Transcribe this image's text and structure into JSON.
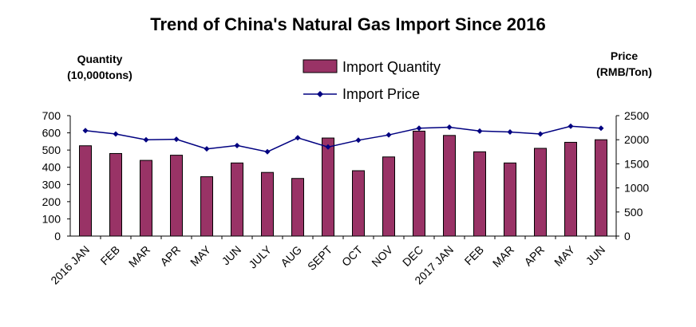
{
  "chart_data": {
    "type": "bar",
    "title": "Trend of China's Natural Gas Import Since 2016",
    "left_axis": {
      "label_line1": "Quantity",
      "label_line2": "(10,000tons)",
      "ylim": [
        0,
        700
      ],
      "ticks": [
        0,
        100,
        200,
        300,
        400,
        500,
        600,
        700
      ]
    },
    "right_axis": {
      "label_line1": "Price",
      "label_line2": "(RMB/Ton)",
      "ylim": [
        0,
        2500
      ],
      "ticks": [
        0,
        500,
        1000,
        1500,
        2000,
        2500
      ]
    },
    "categories": [
      "2016 JAN",
      "FEB",
      "MAR",
      "APR",
      "MAY",
      "JUN",
      "JULY",
      "AUG",
      "SEPT",
      "OCT",
      "NOV",
      "DEC",
      "2017 JAN",
      "FEB",
      "MAR",
      "APR",
      "MAY",
      "JUN"
    ],
    "series": [
      {
        "name": "Import Quantity",
        "type": "bar",
        "axis": "left",
        "color": "#993366",
        "values": [
          525,
          480,
          440,
          470,
          345,
          425,
          370,
          335,
          570,
          380,
          460,
          610,
          585,
          490,
          425,
          510,
          545,
          560
        ]
      },
      {
        "name": "Import Price",
        "type": "line",
        "axis": "right",
        "color": "#000080",
        "values": [
          2190,
          2120,
          2000,
          2010,
          1810,
          1880,
          1750,
          2040,
          1850,
          1990,
          2100,
          2240,
          2260,
          2180,
          2160,
          2120,
          2280,
          2240
        ]
      }
    ],
    "legend_position": "top-center",
    "grid": false
  }
}
